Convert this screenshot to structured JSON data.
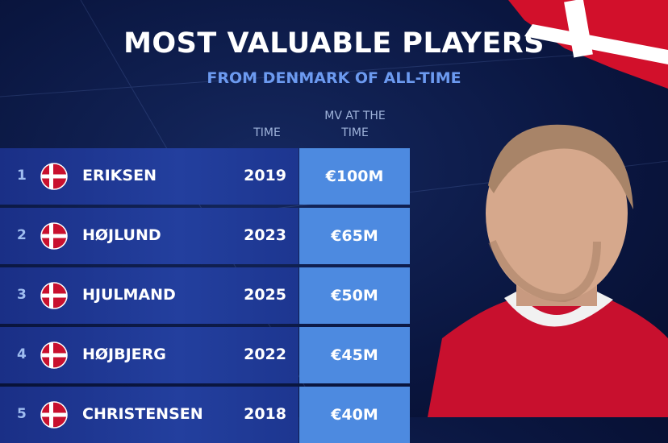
{
  "header": {
    "title": "MOST VALUABLE PLAYERS",
    "subtitle": "FROM DENMARK OF ALL-TIME"
  },
  "table": {
    "columns": [
      "TIME",
      "MV AT THE TIME"
    ],
    "rows": [
      [
        "1",
        "ERIKSEN",
        "2019",
        "€100M"
      ],
      [
        "2",
        "HØJLUND",
        "2023",
        "€65M"
      ],
      [
        "3",
        "HJULMAND",
        "2025",
        "€50M"
      ],
      [
        "4",
        "HØJBJERG",
        "2022",
        "€45M"
      ],
      [
        "5",
        "CHRISTENSEN",
        "2018",
        "€40M"
      ]
    ]
  }
}
